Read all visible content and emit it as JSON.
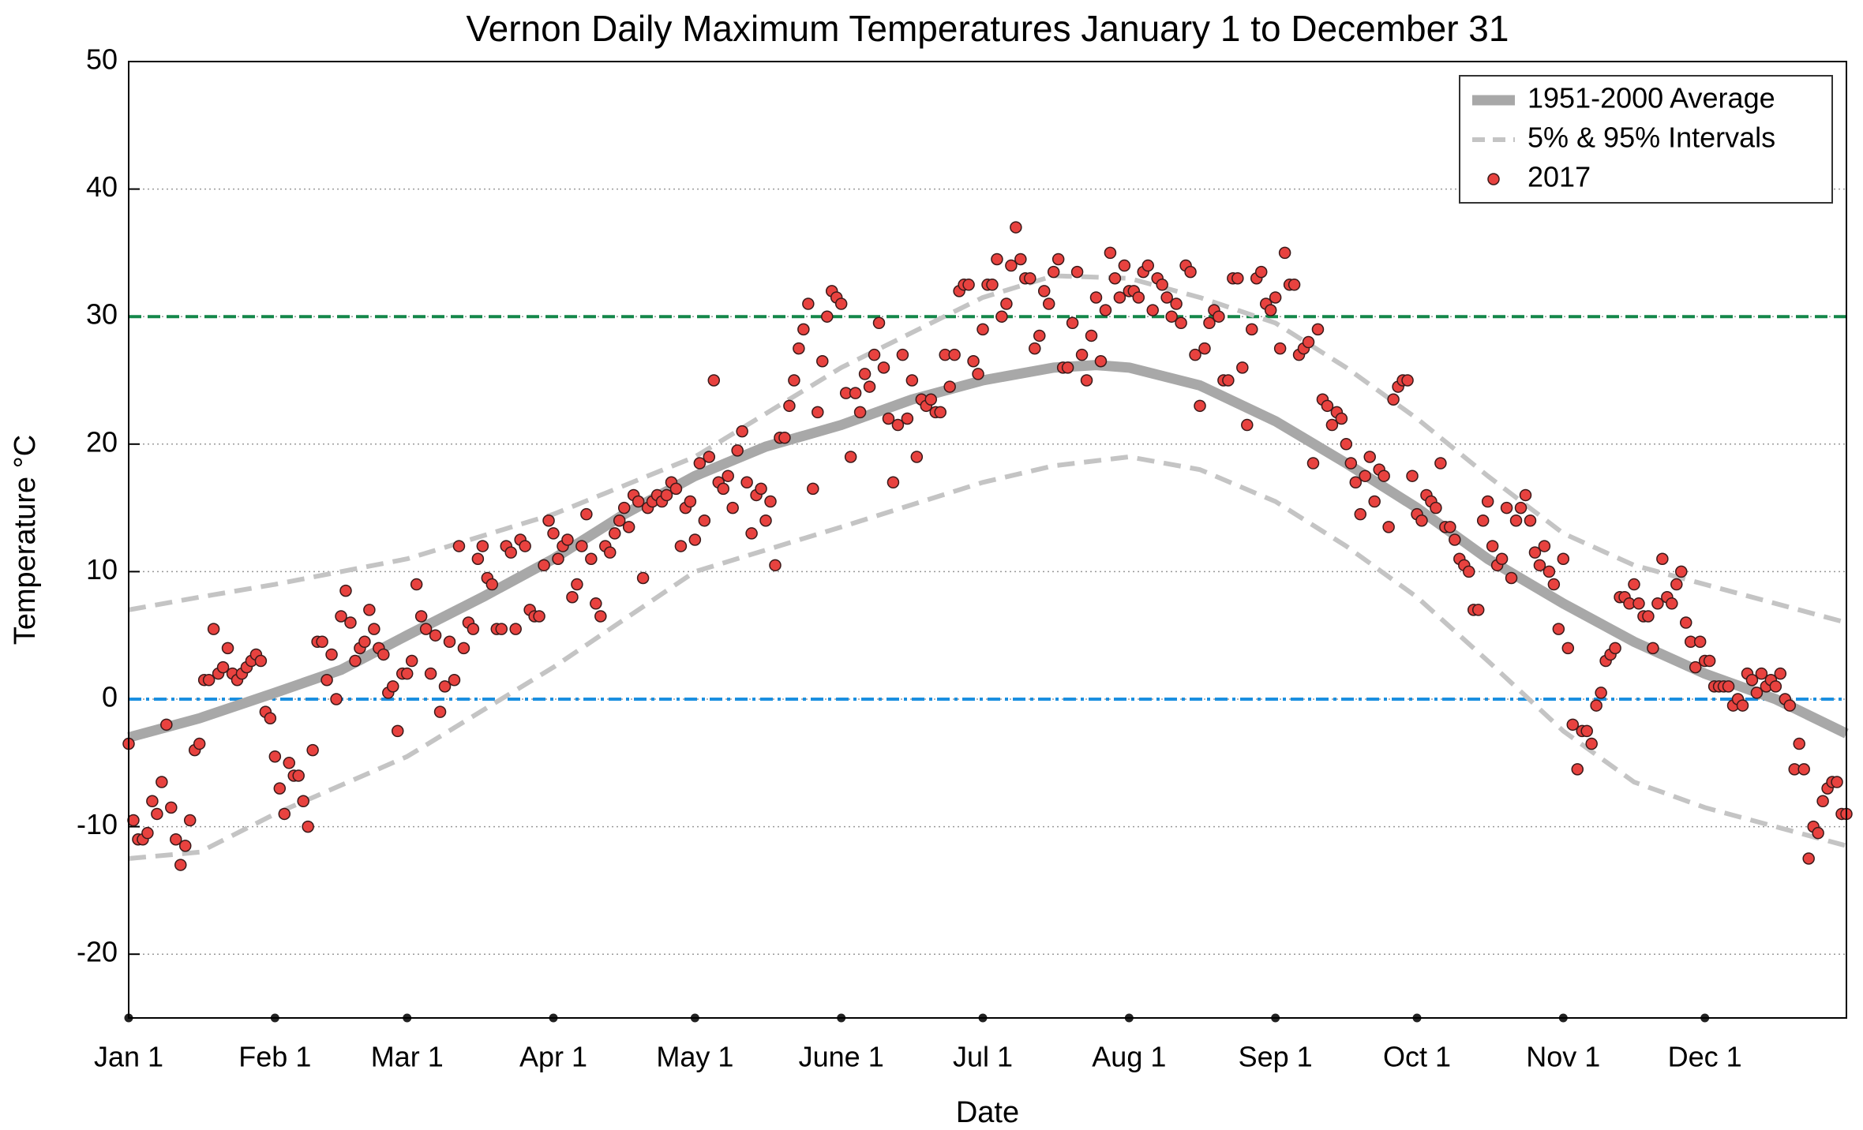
{
  "chart_data": {
    "type": "scatter-bands",
    "title": "Vernon Daily Maximum Temperatures January 1 to December 31",
    "x_label": "Date",
    "y_label": "Temperature °C",
    "xlim": [
      0,
      364
    ],
    "ylim": [
      -25,
      50
    ],
    "xticks": [
      {
        "value": 0,
        "label": "Jan 1"
      },
      {
        "value": 31,
        "label": "Feb 1"
      },
      {
        "value": 59,
        "label": "Mar 1"
      },
      {
        "value": 90,
        "label": "Apr 1"
      },
      {
        "value": 120,
        "label": "May 1"
      },
      {
        "value": 151,
        "label": "June 1"
      },
      {
        "value": 181,
        "label": "Jul 1"
      },
      {
        "value": 212,
        "label": "Aug 1"
      },
      {
        "value": 243,
        "label": "Sep 1"
      },
      {
        "value": 273,
        "label": "Oct 1"
      },
      {
        "value": 304,
        "label": "Nov 1"
      },
      {
        "value": 334,
        "label": "Dec 1"
      }
    ],
    "yticks": [
      -20,
      -10,
      0,
      10,
      20,
      30,
      40,
      50
    ],
    "grid": true,
    "legend": "upper right",
    "reference_lines": [
      {
        "value": 30,
        "color": "#14874a"
      },
      {
        "value": 0,
        "color": "#1a8fe0"
      }
    ],
    "average": {
      "name": "1951-2000 Average",
      "color": "#a8a8a8",
      "x": [
        0,
        15,
        31,
        45,
        59,
        75,
        90,
        105,
        120,
        135,
        151,
        166,
        181,
        196,
        205,
        212,
        227,
        243,
        258,
        273,
        288,
        304,
        319,
        334,
        349,
        364
      ],
      "values": [
        -3,
        -1.5,
        0.5,
        2.3,
        5,
        8,
        11,
        14.5,
        17.5,
        19.8,
        21.5,
        23.5,
        25,
        26,
        26.2,
        26,
        24.6,
        21.8,
        18.5,
        15,
        11,
        7.5,
        4.5,
        2,
        0,
        -2.7
      ]
    },
    "intervals": {
      "name": "5% & 95% Intervals",
      "color": "#c4c4c4",
      "x": [
        0,
        15,
        31,
        59,
        90,
        120,
        151,
        181,
        196,
        212,
        227,
        243,
        258,
        273,
        288,
        304,
        319,
        334,
        349,
        364
      ],
      "upper": [
        7,
        8,
        9,
        11,
        14.5,
        19,
        26,
        31.5,
        33.2,
        33,
        31.5,
        29.5,
        26,
        22,
        17.5,
        13,
        10.5,
        9,
        7.5,
        6
      ],
      "lower": [
        -12.5,
        -12,
        -9,
        -4.5,
        2.5,
        10,
        13.5,
        17,
        18.3,
        19,
        18,
        15.5,
        12,
        8,
        3,
        -2.5,
        -6.5,
        -8.5,
        -10,
        -11.5
      ]
    },
    "observed": {
      "name": "2017",
      "color": "#e8423f",
      "x": [
        0,
        1,
        2,
        3,
        4,
        5,
        6,
        7,
        8,
        9,
        10,
        11,
        12,
        13,
        14,
        15,
        16,
        17,
        18,
        19,
        20,
        21,
        22,
        23,
        24,
        25,
        26,
        27,
        28,
        29,
        30,
        31,
        32,
        33,
        34,
        35,
        36,
        37,
        38,
        39,
        40,
        41,
        42,
        43,
        44,
        45,
        46,
        47,
        48,
        49,
        50,
        51,
        52,
        53,
        54,
        55,
        56,
        57,
        58,
        59,
        60,
        61,
        62,
        63,
        64,
        65,
        66,
        67,
        68,
        69,
        70,
        71,
        72,
        73,
        74,
        75,
        76,
        77,
        78,
        79,
        80,
        81,
        82,
        83,
        84,
        85,
        86,
        87,
        88,
        89,
        90,
        91,
        92,
        93,
        94,
        95,
        96,
        97,
        98,
        99,
        100,
        101,
        102,
        103,
        104,
        105,
        106,
        107,
        108,
        109,
        110,
        111,
        112,
        113,
        114,
        115,
        116,
        117,
        118,
        119,
        120,
        121,
        122,
        123,
        124,
        125,
        126,
        127,
        128,
        129,
        130,
        131,
        132,
        133,
        134,
        135,
        136,
        137,
        138,
        139,
        140,
        141,
        142,
        143,
        144,
        145,
        146,
        147,
        148,
        149,
        150,
        151,
        152,
        153,
        154,
        155,
        156,
        157,
        158,
        159,
        160,
        161,
        162,
        163,
        164,
        165,
        166,
        167,
        168,
        169,
        170,
        171,
        172,
        173,
        174,
        175,
        176,
        177,
        178,
        179,
        180,
        181,
        182,
        183,
        184,
        185,
        186,
        187,
        188,
        189,
        190,
        191,
        192,
        193,
        194,
        195,
        196,
        197,
        198,
        199,
        200,
        201,
        202,
        203,
        204,
        205,
        206,
        207,
        208,
        209,
        210,
        211,
        212,
        213,
        214,
        215,
        216,
        217,
        218,
        219,
        220,
        221,
        222,
        223,
        224,
        225,
        226,
        227,
        228,
        229,
        230,
        231,
        232,
        233,
        234,
        235,
        236,
        237,
        238,
        239,
        240,
        241,
        242,
        243,
        244,
        245,
        246,
        247,
        248,
        249,
        250,
        251,
        252,
        253,
        254,
        255,
        256,
        257,
        258,
        259,
        260,
        261,
        262,
        263,
        264,
        265,
        266,
        267,
        268,
        269,
        270,
        271,
        272,
        273,
        274,
        275,
        276,
        277,
        278,
        279,
        280,
        281,
        282,
        283,
        284,
        285,
        286,
        287,
        288,
        289,
        290,
        291,
        292,
        293,
        294,
        295,
        296,
        297,
        298,
        299,
        300,
        301,
        302,
        303,
        304,
        305,
        306,
        307,
        308,
        309,
        310,
        311,
        312,
        313,
        314,
        315,
        316,
        317,
        318,
        319,
        320,
        321,
        322,
        323,
        324,
        325,
        326,
        327,
        328,
        329,
        330,
        331,
        332,
        333,
        334,
        335,
        336,
        337,
        338,
        339,
        340,
        341,
        342,
        343,
        344,
        345,
        346,
        347,
        348,
        349,
        350,
        351,
        352,
        353,
        354,
        355,
        356,
        357,
        358,
        359,
        360,
        361,
        362,
        363,
        364
      ],
      "values": [
        -3.5,
        -9.5,
        -11,
        -11,
        -10.5,
        -8,
        -9,
        -6.5,
        -2,
        -8.5,
        -11,
        -13,
        -11.5,
        -9.5,
        -4,
        -3.5,
        1.5,
        1.5,
        5.5,
        2,
        2.5,
        4,
        2,
        1.5,
        2,
        2.5,
        3,
        3.5,
        3,
        -1,
        -1.5,
        -4.5,
        -7,
        -9,
        -5,
        -6,
        -6,
        -8,
        -10,
        -4,
        4.5,
        4.5,
        1.5,
        3.5,
        0,
        6.5,
        8.5,
        6,
        3,
        4,
        4.5,
        7,
        5.5,
        4,
        3.5,
        0.5,
        1,
        -2.5,
        2,
        2,
        3,
        9,
        6.5,
        5.5,
        2,
        5,
        -1,
        1,
        4.5,
        1.5,
        12,
        4,
        6,
        5.5,
        11,
        12,
        9.5,
        9,
        5.5,
        5.5,
        12,
        11.5,
        5.5,
        12.5,
        12,
        7,
        6.5,
        6.5,
        10.5,
        14,
        13,
        11,
        12,
        12.5,
        8,
        9,
        12,
        14.5,
        11,
        7.5,
        6.5,
        12,
        11.5,
        13,
        14,
        15,
        13.5,
        16,
        15.5,
        9.5,
        15,
        15.5,
        16,
        15.5,
        16,
        17,
        16.5,
        12,
        15,
        15.5,
        12.5,
        18.5,
        14,
        19,
        25,
        17,
        16.5,
        17.5,
        15,
        19.5,
        21,
        17,
        13,
        16,
        16.5,
        14,
        15.5,
        10.5,
        20.5,
        20.5,
        23,
        25,
        27.5,
        29,
        31,
        16.5,
        22.5,
        26.5,
        30,
        32,
        31.5,
        31,
        24,
        19,
        24,
        22.5,
        25.5,
        24.5,
        27,
        29.5,
        26,
        22,
        17,
        21.5,
        27,
        22,
        25,
        19,
        23.5,
        23,
        23.5,
        22.5,
        22.5,
        27,
        24.5,
        27,
        32,
        32.5,
        32.5,
        26.5,
        25.5,
        29,
        32.5,
        32.5,
        34.5,
        30,
        31,
        34,
        37,
        34.5,
        33,
        33,
        27.5,
        28.5,
        32,
        31,
        33.5,
        34.5,
        26,
        26,
        29.5,
        33.5,
        27,
        25,
        28.5,
        31.5,
        26.5,
        30.5,
        35,
        33,
        31.5,
        34,
        32,
        32,
        31.5,
        33.5,
        34,
        30.5,
        33,
        32.5,
        31.5,
        30,
        31,
        29.5,
        34,
        33.5,
        27,
        23,
        27.5,
        29.5,
        30.5,
        30,
        25,
        25,
        33,
        33,
        26,
        21.5,
        29,
        33,
        33.5,
        31,
        30.5,
        31.5,
        27.5,
        35,
        32.5,
        32.5,
        27,
        27.5,
        28,
        18.5,
        29,
        23.5,
        23,
        21.5,
        22.5,
        22,
        20,
        18.5,
        17,
        14.5,
        17.5,
        19,
        15.5,
        18,
        17.5,
        13.5,
        23.5,
        24.5,
        25,
        25,
        17.5,
        14.5,
        14,
        16,
        15.5,
        15,
        18.5,
        13.5,
        13.5,
        12.5,
        11,
        10.5,
        10,
        7,
        7,
        14,
        15.5,
        12,
        10.5,
        11,
        15,
        9.5,
        14,
        15,
        16,
        14,
        11.5,
        10.5,
        12,
        10,
        9,
        5.5,
        11,
        4,
        -2,
        -5.5,
        -2.5,
        -2.5,
        -3.5,
        -0.5,
        0.5,
        3,
        3.5,
        4,
        8,
        8,
        7.5,
        9,
        7.5,
        6.5,
        6.5,
        4,
        7.5,
        11,
        8,
        7.5,
        9,
        10,
        6,
        4.5,
        2.5,
        4.5,
        3,
        3,
        1,
        1,
        1,
        1,
        -0.5,
        0,
        -0.5,
        2,
        1.5,
        0.5,
        2,
        1,
        1.5,
        1,
        2,
        0,
        -0.5,
        -5.5,
        -3.5,
        -5.5,
        -12.5,
        -10,
        -10.5,
        -8,
        -7,
        -6.5,
        -6.5,
        -9,
        -9
      ]
    }
  }
}
